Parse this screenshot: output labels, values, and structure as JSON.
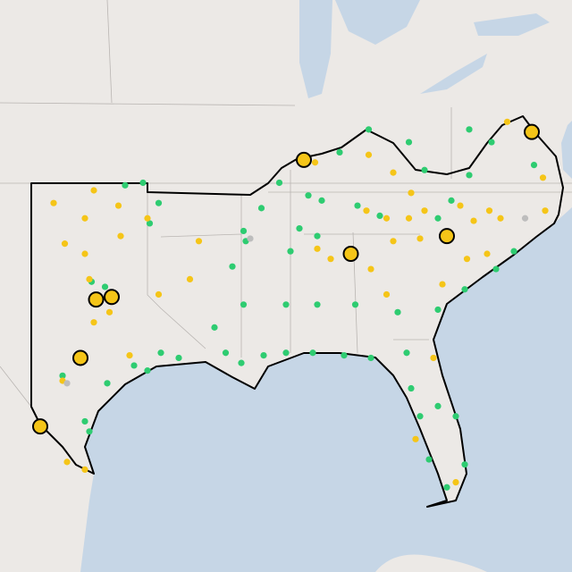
{
  "map": {
    "layers": [
      {
        "color": "#2ecc71",
        "outlined": false,
        "points": [
          [
            -95.2,
            36.8
          ],
          [
            -94.4,
            36.9
          ],
          [
            -93.7,
            36.1
          ],
          [
            -94.1,
            35.3
          ],
          [
            -89.9,
            35.0
          ],
          [
            -89.8,
            34.6
          ],
          [
            -90.4,
            33.6
          ],
          [
            -89.9,
            32.1
          ],
          [
            -91.2,
            31.2
          ],
          [
            -90.7,
            30.2
          ],
          [
            -90.0,
            29.8
          ],
          [
            -89.0,
            30.1
          ],
          [
            -88.0,
            30.2
          ],
          [
            -86.8,
            30.2
          ],
          [
            -85.4,
            30.1
          ],
          [
            -84.2,
            30.0
          ],
          [
            -82.6,
            30.2
          ],
          [
            -82.4,
            28.8
          ],
          [
            -82.0,
            27.7
          ],
          [
            -81.2,
            28.1
          ],
          [
            -80.4,
            27.7
          ],
          [
            -81.6,
            26.0
          ],
          [
            -80.8,
            24.9
          ],
          [
            -80.0,
            25.8
          ],
          [
            -81.2,
            31.9
          ],
          [
            -80.0,
            32.7
          ],
          [
            -77.8,
            34.2
          ],
          [
            -78.6,
            33.5
          ],
          [
            -89.1,
            35.9
          ],
          [
            -88.3,
            36.9
          ],
          [
            -87.0,
            36.4
          ],
          [
            -85.6,
            38.1
          ],
          [
            -84.3,
            39.0
          ],
          [
            -82.5,
            38.5
          ],
          [
            -81.8,
            37.4
          ],
          [
            -79.8,
            37.2
          ],
          [
            -80.6,
            36.2
          ],
          [
            -81.2,
            35.5
          ],
          [
            -83.8,
            35.6
          ],
          [
            -84.8,
            36.0
          ],
          [
            -86.4,
            36.2
          ],
          [
            -87.4,
            35.1
          ],
          [
            -86.6,
            34.8
          ],
          [
            -87.8,
            34.2
          ],
          [
            -88.0,
            32.1
          ],
          [
            -86.6,
            32.1
          ],
          [
            -84.9,
            32.1
          ],
          [
            -83.0,
            31.8
          ],
          [
            -93.6,
            30.2
          ],
          [
            -92.8,
            30.0
          ],
          [
            -94.8,
            29.7
          ],
          [
            -94.2,
            29.5
          ],
          [
            -96.0,
            29.0
          ],
          [
            -97.0,
            27.5
          ],
          [
            -96.8,
            27.1
          ],
          [
            -98.0,
            29.3
          ],
          [
            -96.7,
            33.0
          ],
          [
            -96.1,
            32.8
          ],
          [
            -79.8,
            39.0
          ],
          [
            -78.8,
            38.5
          ],
          [
            -76.9,
            37.6
          ]
        ]
      },
      {
        "color": "#f5c518",
        "outlined": false,
        "points": [
          [
            -96.6,
            36.6
          ],
          [
            -98.4,
            36.1
          ],
          [
            -95.5,
            36.0
          ],
          [
            -97.0,
            35.5
          ],
          [
            -97.9,
            34.5
          ],
          [
            -97.0,
            34.1
          ],
          [
            -95.4,
            34.8
          ],
          [
            -94.2,
            35.5
          ],
          [
            -91.9,
            34.6
          ],
          [
            -92.3,
            33.1
          ],
          [
            -93.7,
            32.5
          ],
          [
            -96.8,
            33.1
          ],
          [
            -95.9,
            31.8
          ],
          [
            -96.6,
            31.4
          ],
          [
            -95.0,
            30.1
          ],
          [
            -98.0,
            29.1
          ],
          [
            -97.8,
            25.9
          ],
          [
            -97.0,
            25.6
          ],
          [
            -86.7,
            37.7
          ],
          [
            -84.3,
            38.0
          ],
          [
            -83.2,
            37.3
          ],
          [
            -82.4,
            36.5
          ],
          [
            -84.4,
            35.8
          ],
          [
            -83.5,
            35.5
          ],
          [
            -82.5,
            35.5
          ],
          [
            -81.8,
            35.8
          ],
          [
            -80.2,
            36.0
          ],
          [
            -79.6,
            35.4
          ],
          [
            -78.9,
            35.8
          ],
          [
            -78.4,
            35.5
          ],
          [
            -79.0,
            34.1
          ],
          [
            -79.9,
            33.9
          ],
          [
            -82.0,
            34.7
          ],
          [
            -84.2,
            33.5
          ],
          [
            -83.5,
            32.5
          ],
          [
            -81.0,
            32.9
          ],
          [
            -86.6,
            34.3
          ],
          [
            -86.0,
            33.9
          ],
          [
            -81.4,
            30.0
          ],
          [
            -82.2,
            26.8
          ],
          [
            -80.4,
            25.1
          ],
          [
            -78.1,
            39.3
          ],
          [
            -76.5,
            37.1
          ],
          [
            -76.4,
            35.8
          ],
          [
            -83.2,
            34.6
          ]
        ]
      },
      {
        "color": "#bdbdbd",
        "outlined": false,
        "points": [
          [
            -89.6,
            34.7
          ],
          [
            -77.3,
            35.5
          ],
          [
            -97.8,
            29.0
          ]
        ]
      },
      {
        "color": "#f5c518",
        "outlined": true,
        "points": [
          [
            -87.2,
            37.8
          ],
          [
            -77.0,
            38.9
          ],
          [
            -80.8,
            34.8
          ],
          [
            -85.1,
            34.1
          ],
          [
            -96.5,
            32.3
          ],
          [
            -95.8,
            32.4
          ],
          [
            -97.2,
            30.0
          ],
          [
            -99.0,
            27.3
          ]
        ]
      }
    ]
  }
}
